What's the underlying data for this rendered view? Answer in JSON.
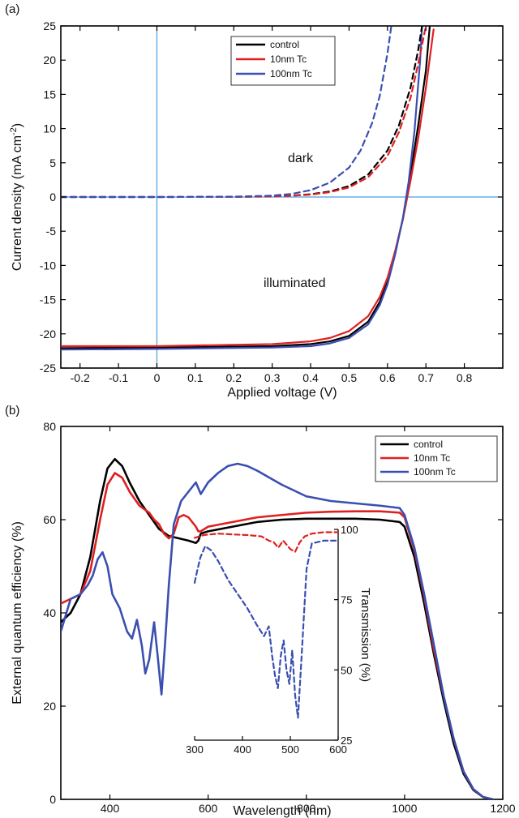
{
  "chart_data": [
    {
      "panel_label": "(a)",
      "type": "line",
      "xlabel": "Applied voltage (V)",
      "ylabel": "Current density (mA cm",
      "ylabel_sup": "-2",
      "ylabel_tail": ")",
      "xlim": [
        -0.25,
        0.9
      ],
      "ylim": [
        -25,
        25
      ],
      "xticks": [
        -0.2,
        -0.1,
        0,
        0.1,
        0.2,
        0.3,
        0.4,
        0.5,
        0.6,
        0.7,
        0.8
      ],
      "xtick_labels": [
        "-0.2",
        "-0.1",
        "0",
        "0.1",
        "0.2",
        "0.3",
        "0.4",
        "0.5",
        "0.6",
        "0.7",
        "0.8"
      ],
      "yticks": [
        -25,
        -20,
        -15,
        -10,
        -5,
        0,
        5,
        10,
        15,
        20,
        25
      ],
      "ytick_labels": [
        "-25",
        "-20",
        "-15",
        "-10",
        "-5",
        "0",
        "5",
        "10",
        "15",
        "20",
        "25"
      ],
      "grid": false,
      "legend_position": "top-center",
      "annotations": [
        "dark",
        "illuminated"
      ],
      "series": [
        {
          "name": "control",
          "color": "#000000",
          "condition": "illuminated",
          "x": [
            -0.25,
            0.0,
            0.3,
            0.4,
            0.45,
            0.5,
            0.55,
            0.58,
            0.6,
            0.62,
            0.64,
            0.66,
            0.68,
            0.7,
            0.71
          ],
          "y": [
            -22.1,
            -22.0,
            -21.8,
            -21.5,
            -21.1,
            -20.3,
            -18.2,
            -15.3,
            -12.2,
            -8.0,
            -3.2,
            3.3,
            10.5,
            18.5,
            25
          ]
        },
        {
          "name": "10nm Tc",
          "color": "#e02020",
          "condition": "illuminated",
          "x": [
            -0.25,
            0.0,
            0.3,
            0.4,
            0.45,
            0.5,
            0.55,
            0.58,
            0.6,
            0.62,
            0.64,
            0.66,
            0.68,
            0.7,
            0.72
          ],
          "y": [
            -21.8,
            -21.8,
            -21.5,
            -21.1,
            -20.6,
            -19.6,
            -17.4,
            -14.6,
            -11.8,
            -7.9,
            -3.3,
            2.4,
            8.6,
            16.0,
            24.5
          ]
        },
        {
          "name": "100nm Tc",
          "color": "#3a4fb0",
          "condition": "illuminated",
          "x": [
            -0.25,
            0.0,
            0.3,
            0.4,
            0.45,
            0.5,
            0.55,
            0.58,
            0.6,
            0.62,
            0.64,
            0.655,
            0.67,
            0.685,
            0.69
          ],
          "y": [
            -22.3,
            -22.2,
            -22.0,
            -21.8,
            -21.4,
            -20.6,
            -18.6,
            -15.8,
            -12.8,
            -8.4,
            -3.1,
            2.2,
            9.5,
            20.0,
            25
          ]
        },
        {
          "name": "control",
          "color": "#000000",
          "condition": "dark",
          "dashed": true,
          "x": [
            -0.25,
            0.0,
            0.2,
            0.3,
            0.35,
            0.4,
            0.45,
            0.5,
            0.55,
            0.6,
            0.63,
            0.66,
            0.68,
            0.69
          ],
          "y": [
            0.0,
            0.0,
            0.02,
            0.1,
            0.2,
            0.4,
            0.8,
            1.6,
            3.3,
            6.8,
            10.5,
            16.0,
            21.5,
            25
          ]
        },
        {
          "name": "10nm Tc",
          "color": "#e02020",
          "condition": "dark",
          "dashed": true,
          "x": [
            -0.25,
            0.0,
            0.2,
            0.3,
            0.35,
            0.4,
            0.45,
            0.5,
            0.55,
            0.6,
            0.63,
            0.66,
            0.68,
            0.7
          ],
          "y": [
            0.0,
            0.0,
            0.02,
            0.08,
            0.18,
            0.35,
            0.7,
            1.4,
            2.9,
            6.0,
            9.5,
            14.5,
            19.5,
            25
          ]
        },
        {
          "name": "100nm Tc",
          "color": "#3a4fb0",
          "condition": "dark",
          "dashed": true,
          "x": [
            -0.25,
            0.0,
            0.2,
            0.3,
            0.35,
            0.4,
            0.45,
            0.5,
            0.53,
            0.56,
            0.58,
            0.6,
            0.61
          ],
          "y": [
            0.0,
            0.0,
            0.05,
            0.2,
            0.45,
            1.0,
            2.1,
            4.3,
            6.8,
            10.8,
            14.8,
            21.0,
            25
          ]
        }
      ]
    },
    {
      "panel_label": "(b)",
      "type": "line",
      "xlabel": "Wavelength (nm)",
      "ylabel": "External quantum efficiency (%)",
      "xlim": [
        300,
        1200
      ],
      "ylim": [
        0,
        80
      ],
      "xticks": [
        400,
        600,
        800,
        1000,
        1200
      ],
      "xtick_labels": [
        "400",
        "600",
        "800",
        "1000",
        "1200"
      ],
      "yticks": [
        0,
        20,
        40,
        60,
        80
      ],
      "ytick_labels": [
        "0",
        "20",
        "40",
        "60",
        "80"
      ],
      "grid": false,
      "legend_position": "top-right",
      "series": [
        {
          "name": "control",
          "color": "#000000",
          "x": [
            300,
            320,
            340,
            360,
            380,
            395,
            410,
            425,
            440,
            460,
            480,
            500,
            520,
            540,
            560,
            575,
            580,
            585,
            600,
            650,
            700,
            750,
            800,
            850,
            900,
            950,
            990,
            1000,
            1020,
            1040,
            1060,
            1080,
            1100,
            1120,
            1140,
            1160,
            1180
          ],
          "y": [
            38,
            40,
            44,
            52,
            64,
            71,
            73,
            71.5,
            68,
            64,
            61,
            58,
            56.5,
            56,
            55.5,
            55,
            55.5,
            57,
            57.5,
            58.5,
            59.5,
            60,
            60.2,
            60.2,
            60.2,
            60,
            59.5,
            58.5,
            52,
            42,
            31,
            21,
            12,
            5.5,
            2,
            0.5,
            0
          ]
        },
        {
          "name": "10nm Tc",
          "color": "#e02020",
          "x": [
            300,
            320,
            340,
            360,
            380,
            395,
            410,
            425,
            440,
            460,
            480,
            490,
            500,
            510,
            520,
            530,
            540,
            550,
            560,
            575,
            580,
            585,
            600,
            650,
            700,
            750,
            800,
            850,
            900,
            950,
            990,
            1000,
            1020,
            1040,
            1060,
            1080,
            1100,
            1120,
            1140,
            1160,
            1180
          ],
          "y": [
            42,
            43,
            44,
            49,
            60,
            67.5,
            70,
            69,
            66,
            63,
            61.5,
            60,
            59,
            57,
            56,
            57,
            60.5,
            61,
            60.5,
            58.5,
            57.5,
            57.5,
            58.5,
            59.5,
            60.5,
            61,
            61.5,
            61.7,
            61.8,
            61.8,
            61.5,
            60.5,
            53.5,
            43.5,
            32,
            22,
            13,
            6,
            2.2,
            0.5,
            0
          ]
        },
        {
          "name": "100nm Tc",
          "color": "#3a4fb0",
          "x": [
            300,
            320,
            340,
            355,
            365,
            375,
            385,
            395,
            405,
            420,
            435,
            445,
            455,
            465,
            472,
            480,
            490,
            497,
            505,
            512,
            520,
            530,
            545,
            560,
            575,
            585,
            600,
            620,
            640,
            660,
            680,
            700,
            750,
            800,
            850,
            900,
            950,
            990,
            1000,
            1020,
            1040,
            1060,
            1080,
            1100,
            1120,
            1140,
            1160,
            1180
          ],
          "y": [
            36,
            43,
            44,
            46,
            48,
            51.5,
            53,
            50,
            44,
            41,
            36,
            34.5,
            38.5,
            33,
            27,
            30,
            38,
            31,
            22.5,
            33,
            46,
            59,
            64,
            66,
            68,
            65.5,
            68,
            70,
            71.5,
            72,
            71.5,
            70.5,
            67.5,
            65,
            64,
            63.5,
            63,
            62.5,
            61,
            54,
            44,
            33,
            22,
            13,
            6,
            2.2,
            0.5,
            0
          ]
        }
      ],
      "inset": {
        "type": "line",
        "xlabel": "",
        "ylabel": "Transmission (%)",
        "xlim": [
          300,
          600
        ],
        "ylim": [
          25,
          100
        ],
        "xticks": [
          300,
          400,
          500,
          600
        ],
        "xtick_labels": [
          "300",
          "400",
          "500",
          "600"
        ],
        "yticks": [
          25,
          50,
          75,
          100
        ],
        "ytick_labels": [
          "25",
          "50",
          "75",
          "100"
        ],
        "y_axis_side": "right",
        "series": [
          {
            "name": "10nm Tc",
            "color": "#e02020",
            "dashed": true,
            "x": [
              300,
              320,
              350,
              380,
              410,
              440,
              455,
              465,
              475,
              485,
              500,
              510,
              520,
              530,
              545,
              570,
              600
            ],
            "y": [
              97,
              98,
              98.5,
              98.2,
              98,
              97.5,
              96,
              95.5,
              93.5,
              96,
              93,
              92,
              95.5,
              97.5,
              98.5,
              99,
              99
            ]
          },
          {
            "name": "100nm Tc",
            "color": "#3a4fb0",
            "dashed": true,
            "x": [
              300,
              305,
              312,
              322,
              335,
              350,
              370,
              390,
              410,
              430,
              445,
              455,
              462,
              468,
              474,
              480,
              486,
              492,
              498,
              504,
              510,
              516,
              524,
              534,
              545,
              570,
              600
            ],
            "y": [
              81,
              85,
              90,
              94,
              92.5,
              88.5,
              82,
              77,
              72,
              66,
              62,
              65.5,
              55,
              48,
              43.5,
              55,
              60.5,
              50,
              45,
              57,
              41,
              33,
              56,
              86,
              95,
              96,
              96
            ]
          }
        ]
      }
    }
  ]
}
